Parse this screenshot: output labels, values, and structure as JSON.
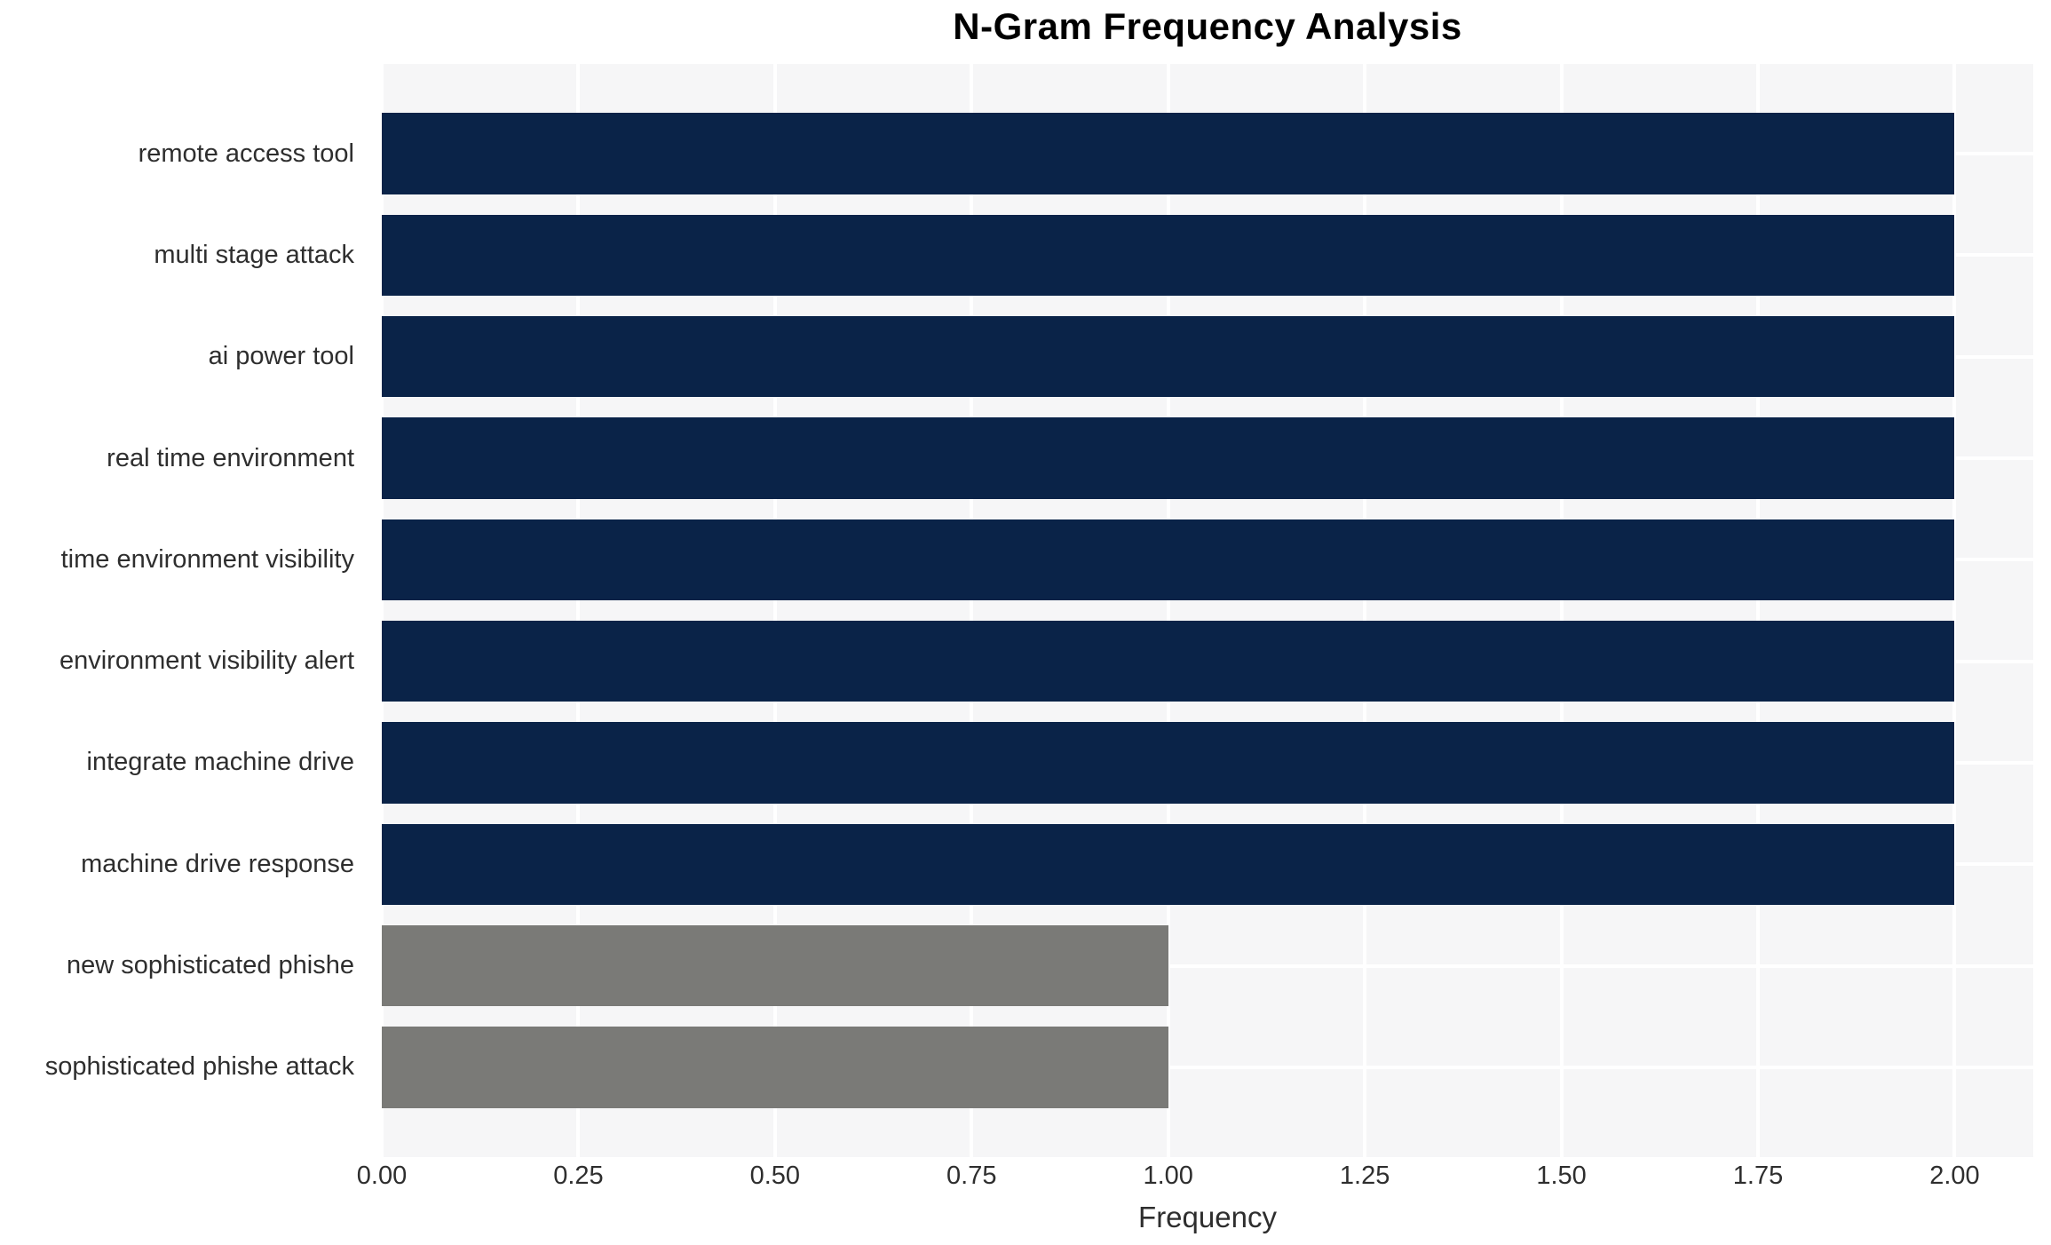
{
  "chart_data": {
    "type": "bar",
    "orientation": "horizontal",
    "title": "N-Gram Frequency Analysis",
    "xlabel": "Frequency",
    "ylabel": "",
    "categories": [
      "remote access tool",
      "multi stage attack",
      "ai power tool",
      "real time environment",
      "time environment visibility",
      "environment visibility alert",
      "integrate machine drive",
      "machine drive response",
      "new sophisticated phishe",
      "sophisticated phishe attack"
    ],
    "values": [
      2,
      2,
      2,
      2,
      2,
      2,
      2,
      2,
      1,
      1
    ],
    "bar_colors": [
      "#0a2348",
      "#0a2348",
      "#0a2348",
      "#0a2348",
      "#0a2348",
      "#0a2348",
      "#0a2348",
      "#0a2348",
      "#7a7a77",
      "#7a7a77"
    ],
    "xlim": [
      0,
      2.1
    ],
    "xticks": [
      0,
      0.25,
      0.5,
      0.75,
      1.0,
      1.25,
      1.5,
      1.75,
      2.0
    ],
    "xtick_labels": [
      "0.00",
      "0.25",
      "0.50",
      "0.75",
      "1.00",
      "1.25",
      "1.50",
      "1.75",
      "2.00"
    ],
    "legend": "none",
    "grid": "white gridlines on light gray plot background",
    "colors": {
      "bar_primary": "#0a2348",
      "bar_secondary": "#7a7a77",
      "plot_background": "#f6f6f7",
      "grid_line": "#ffffff",
      "text": "#2e2e2e",
      "title_text": "#000000",
      "page_background": "#ffffff"
    }
  }
}
